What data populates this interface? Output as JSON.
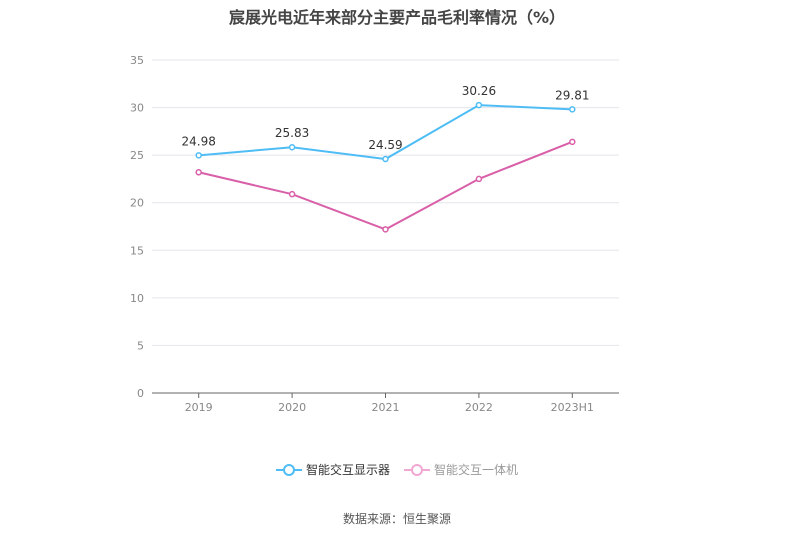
{
  "chart_data": {
    "type": "line",
    "title": "宸展光电近年来部分主要产品毛利率情况（%）",
    "categories": [
      "2019",
      "2020",
      "2021",
      "2022",
      "2023H1"
    ],
    "ylim": [
      0,
      35
    ],
    "yticks": [
      0,
      5,
      10,
      15,
      20,
      25,
      30,
      35
    ],
    "grid": true,
    "legend_position": "bottom",
    "series": [
      {
        "name": "智能交互显示器",
        "color": "#4fbdf5",
        "values": [
          24.98,
          25.83,
          24.59,
          30.26,
          29.81
        ],
        "labels": [
          "24.98",
          "25.83",
          "24.59",
          "30.26",
          "29.81"
        ]
      },
      {
        "name": "智能交互一体机",
        "color": "#d95fa8",
        "legend_color": "#f0a8d2",
        "values": [
          23.2,
          20.9,
          17.2,
          22.5,
          26.4
        ]
      }
    ]
  },
  "source": "数据来源：恒生聚源"
}
